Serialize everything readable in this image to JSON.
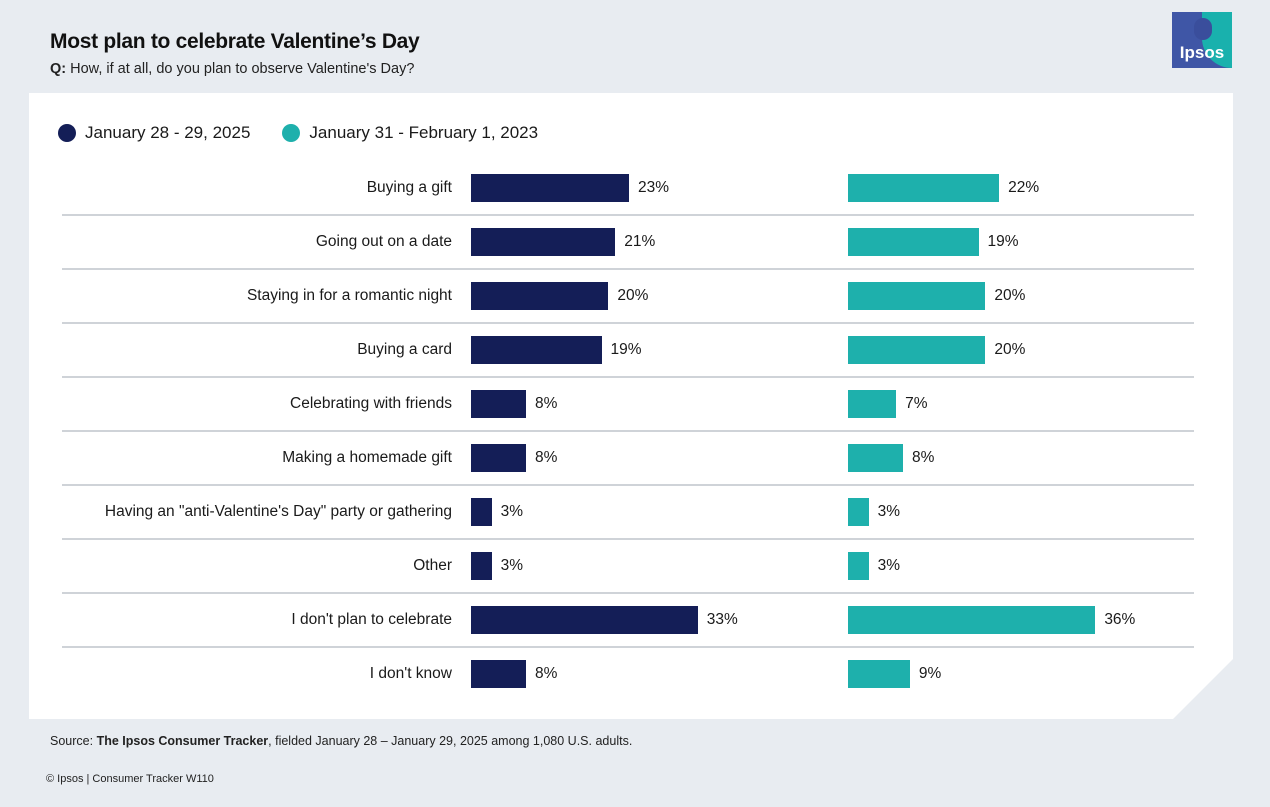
{
  "header": {
    "title": "Most plan to celebrate Valentine’s Day",
    "question_prefix": "Q:",
    "question": " How, if at all, do you plan to observe Valentine's Day?"
  },
  "logo": {
    "text": "Ipsos"
  },
  "colors": {
    "series1": "#141e57",
    "series2": "#1eb0ac"
  },
  "chart_data": {
    "type": "bar",
    "orientation": "horizontal",
    "title": "Most plan to celebrate Valentine’s Day",
    "categories": [
      "Buying a gift",
      "Going out on a date",
      "Staying in for a romantic night",
      "Buying a card",
      "Celebrating with friends",
      "Making a homemade gift",
      "Having an \"anti-Valentine's Day\" party or gathering",
      "Other",
      "I don't plan to celebrate",
      "I don't know"
    ],
    "series": [
      {
        "name": "January 28 - 29, 2025",
        "values": [
          23,
          21,
          20,
          19,
          8,
          8,
          3,
          3,
          33,
          8
        ]
      },
      {
        "name": "January 31 - February 1, 2023",
        "values": [
          22,
          19,
          20,
          20,
          7,
          8,
          3,
          3,
          36,
          9
        ]
      }
    ],
    "value_suffix": "%",
    "xlim": [
      0,
      40
    ],
    "legend": "top-left"
  },
  "footer": {
    "source_prefix": "Source: ",
    "source_bold": "The Ipsos Consumer Tracker",
    "source_rest": ", fielded January 28 – January 29, 2025 among 1,080 U.S. adults.",
    "copyright": "© Ipsos | Consumer Tracker W110"
  }
}
